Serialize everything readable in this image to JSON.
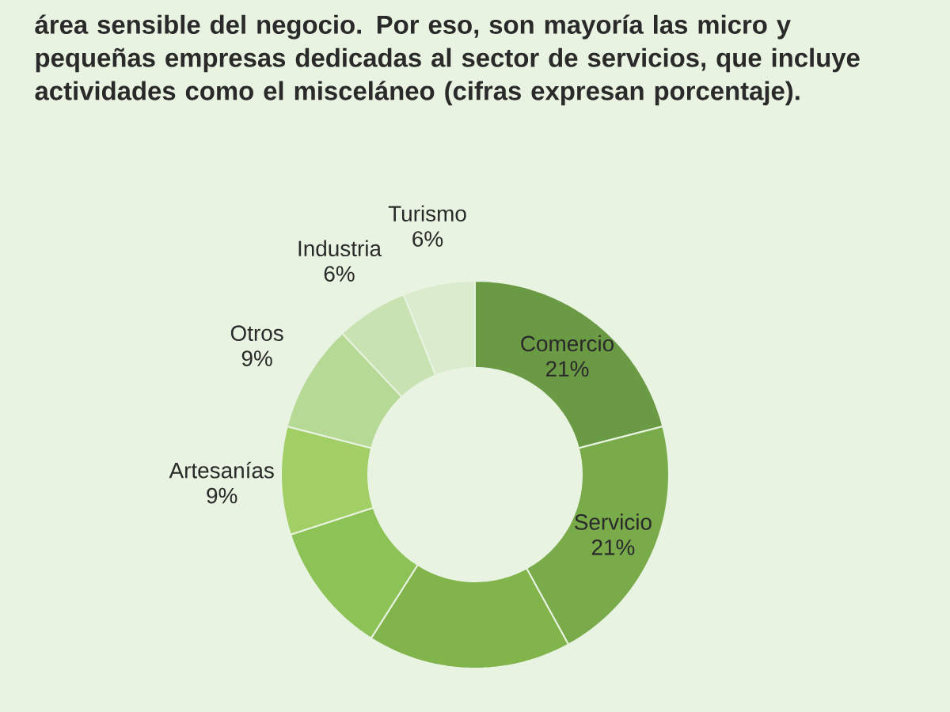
{
  "chart_data": {
    "type": "donut",
    "subtitle": "área sensible del negocio. Por eso, son mayoría las micro y pequeñas empresas dedicadas al sector de servicios, que incluye actividades como el misceláneo (cifras expresan porcentaje).",
    "categories": [
      "Comercio",
      "Servicio",
      null,
      null,
      "Artesanías",
      "Otros",
      "Industria",
      "Turismo"
    ],
    "values": [
      21,
      21,
      17,
      11,
      9,
      9,
      6,
      6
    ],
    "value_labels": [
      "21%",
      "21%",
      null,
      null,
      "9%",
      "9%",
      "6%",
      "6%"
    ],
    "colors": [
      "#6b9a45",
      "#79ab4b",
      "#82b44c",
      "#8dc256",
      "#a1cf66",
      "#b6d995",
      "#c8e2b1",
      "#dbecce"
    ]
  }
}
